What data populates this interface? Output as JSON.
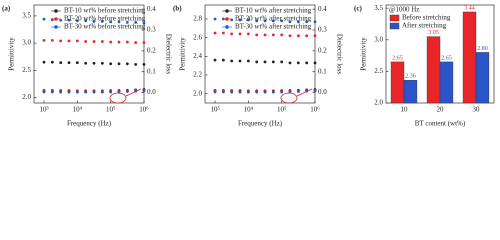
{
  "chart_data": [
    {
      "type": "scatter",
      "panel_label": "(a)",
      "x_label": "Frequency (Hz)",
      "y_label": "Permittivity",
      "y2_label": "Dielectric loss",
      "log_x": true,
      "xlim": [
        500,
        1000000
      ],
      "xticks": [
        {
          "value": 1000,
          "label": "10³"
        },
        {
          "value": 10000,
          "label": "10⁴"
        },
        {
          "value": 100000,
          "label": "10⁵"
        },
        {
          "value": 1000000,
          "label": "10⁶"
        }
      ],
      "ylim": [
        1.9,
        3.7
      ],
      "yticks": [
        {
          "value": 2.0,
          "label": "2.0"
        },
        2.5,
        {
          "value": 3.0,
          "label": "3.0"
        },
        3.5
      ],
      "y2lim": [
        -0.05,
        0.42
      ],
      "y2ticks": [
        {
          "value": 0.0,
          "label": "0.0"
        },
        0.1,
        0.2,
        0.3,
        0.4
      ],
      "legend": "upper center",
      "x": [
        1000,
        1778,
        3162,
        5623,
        10000,
        17783,
        31623,
        56234,
        100000,
        177828,
        316228,
        562341,
        1000000
      ],
      "series": [
        {
          "name": "BT-10 wt% before stretching",
          "color": "#222222",
          "values": [
            2.65,
            2.65,
            2.64,
            2.64,
            2.64,
            2.63,
            2.63,
            2.63,
            2.62,
            2.62,
            2.62,
            2.61,
            2.61
          ]
        },
        {
          "name": "BT-20 wt% before stretching",
          "color": "#e8262a",
          "values": [
            3.05,
            3.05,
            3.04,
            3.04,
            3.04,
            3.03,
            3.03,
            3.03,
            3.02,
            3.02,
            3.02,
            3.01,
            3.01
          ]
        },
        {
          "name": "BT-30 wt% before stretching",
          "color": "#2a55c8",
          "values": [
            3.44,
            3.43,
            3.42,
            3.42,
            3.41,
            3.41,
            3.4,
            3.4,
            3.39,
            3.39,
            3.38,
            3.38,
            3.37
          ]
        },
        {
          "axis": "y2",
          "color": "#222222",
          "values": [
            0.01,
            0.01,
            0.009,
            0.009,
            0.008,
            0.008,
            0.008,
            0.008,
            0.009,
            0.01,
            0.011,
            0.013,
            0.015
          ]
        },
        {
          "axis": "y2",
          "color": "#e8262a",
          "values": [
            0.006,
            0.006,
            0.005,
            0.005,
            0.005,
            0.005,
            0.005,
            0.005,
            0.006,
            0.007,
            0.008,
            0.01,
            0.012
          ]
        },
        {
          "axis": "y2",
          "color": "#2a55c8",
          "values": [
            0.003,
            0.003,
            0.002,
            0.002,
            0.002,
            0.002,
            0.002,
            0.002,
            0.003,
            0.004,
            0.005,
            0.007,
            0.009
          ]
        }
      ]
    },
    {
      "type": "scatter",
      "panel_label": "(b)",
      "x_label": "Frequency (Hz)",
      "y_label": "Permittivity",
      "y2_label": "Dielectric loss",
      "log_x": true,
      "xlim": [
        500,
        1000000
      ],
      "xticks": [
        {
          "value": 1000,
          "label": "10³"
        },
        {
          "value": 10000,
          "label": "10⁴"
        },
        {
          "value": 100000,
          "label": "10⁵"
        },
        {
          "value": 1000000,
          "label": "10⁶"
        }
      ],
      "ylim": [
        1.9,
        2.95
      ],
      "yticks": [
        {
          "value": 2.0,
          "label": "2.0"
        },
        2.2,
        2.4,
        2.6,
        2.8
      ],
      "y2lim": [
        -0.05,
        0.42
      ],
      "y2ticks": [
        {
          "value": 0.0,
          "label": "0.0"
        },
        0.1,
        0.2,
        0.3,
        0.4
      ],
      "legend": "upper center",
      "x": [
        1000,
        1778,
        3162,
        5623,
        10000,
        17783,
        31623,
        56234,
        100000,
        177828,
        316228,
        562341,
        1000000
      ],
      "series": [
        {
          "name": "BT-10 wt% after stretching",
          "color": "#222222",
          "values": [
            2.36,
            2.36,
            2.35,
            2.35,
            2.35,
            2.34,
            2.34,
            2.34,
            2.34,
            2.33,
            2.33,
            2.33,
            2.33
          ]
        },
        {
          "name": "BT-20 wt% after stretching",
          "color": "#e8262a",
          "values": [
            2.65,
            2.65,
            2.64,
            2.64,
            2.64,
            2.63,
            2.63,
            2.63,
            2.63,
            2.62,
            2.62,
            2.62,
            2.62
          ]
        },
        {
          "name": "BT-30 wt% after stretching",
          "color": "#2a55c8",
          "values": [
            2.8,
            2.8,
            2.79,
            2.79,
            2.79,
            2.78,
            2.78,
            2.78,
            2.78,
            2.77,
            2.77,
            2.77,
            2.77
          ]
        },
        {
          "axis": "y2",
          "color": "#222222",
          "values": [
            0.01,
            0.01,
            0.009,
            0.009,
            0.008,
            0.008,
            0.008,
            0.008,
            0.009,
            0.01,
            0.011,
            0.013,
            0.015
          ]
        },
        {
          "axis": "y2",
          "color": "#e8262a",
          "values": [
            0.006,
            0.006,
            0.005,
            0.005,
            0.005,
            0.005,
            0.005,
            0.005,
            0.006,
            0.007,
            0.008,
            0.01,
            0.012
          ]
        },
        {
          "axis": "y2",
          "color": "#2a55c8",
          "values": [
            0.003,
            0.003,
            0.002,
            0.002,
            0.002,
            0.002,
            0.002,
            0.002,
            0.003,
            0.004,
            0.005,
            0.007,
            0.009
          ]
        }
      ]
    },
    {
      "type": "bar",
      "panel_label": "(c)",
      "x_label": "BT content (wt%)",
      "y_label": "Permittivity",
      "annotation": "@1000 Hz",
      "legend": "upper left",
      "categories": [
        "10",
        "20",
        "30"
      ],
      "ylim": [
        2.0,
        3.55
      ],
      "yticks": [
        {
          "value": 2.0,
          "label": "2.0"
        },
        2.5,
        {
          "value": 3.0,
          "label": "3.0"
        },
        3.5
      ],
      "series": [
        {
          "name": "Before stretching",
          "color": "#e8262a",
          "values": [
            2.65,
            3.05,
            3.44
          ],
          "value_labels": [
            "2.65",
            "3.05",
            "3.44"
          ]
        },
        {
          "name": "After stretching",
          "color": "#2a55c8",
          "values": [
            2.36,
            2.65,
            2.8
          ],
          "value_labels": [
            "2.36",
            "2.65",
            "2.80"
          ]
        }
      ]
    }
  ]
}
